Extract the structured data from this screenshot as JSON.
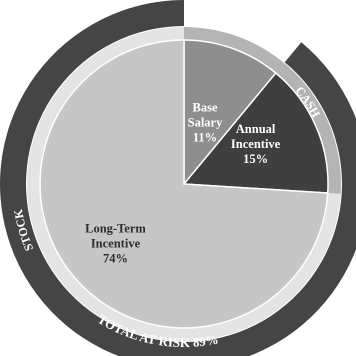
{
  "chart_data": {
    "type": "pie",
    "slices": [
      {
        "label_lines": [
          "Base",
          "Salary"
        ],
        "value": 11,
        "value_label": "11%",
        "color": "#8e8e8e",
        "text_color": "#ffffff"
      },
      {
        "label_lines": [
          "Annual",
          "Incentive"
        ],
        "value": 15,
        "value_label": "15%",
        "color": "#3f3f3f",
        "text_color": "#ffffff"
      },
      {
        "label_lines": [
          "Long-Term",
          "Incentive"
        ],
        "value": 74,
        "value_label": "74%",
        "color": "#c6c6c6",
        "text_color": "#2d2d2d"
      }
    ],
    "rings": [
      {
        "label": "CASH",
        "covers_percent": 26,
        "color": "#b4b4b4"
      },
      {
        "label": "STOCK",
        "covers_percent": 74,
        "color": "#e4e4e4"
      },
      {
        "label": "TOTAL AT RISK",
        "value_label": "89%",
        "covers_percent": 89,
        "color": "#454545"
      }
    ]
  }
}
